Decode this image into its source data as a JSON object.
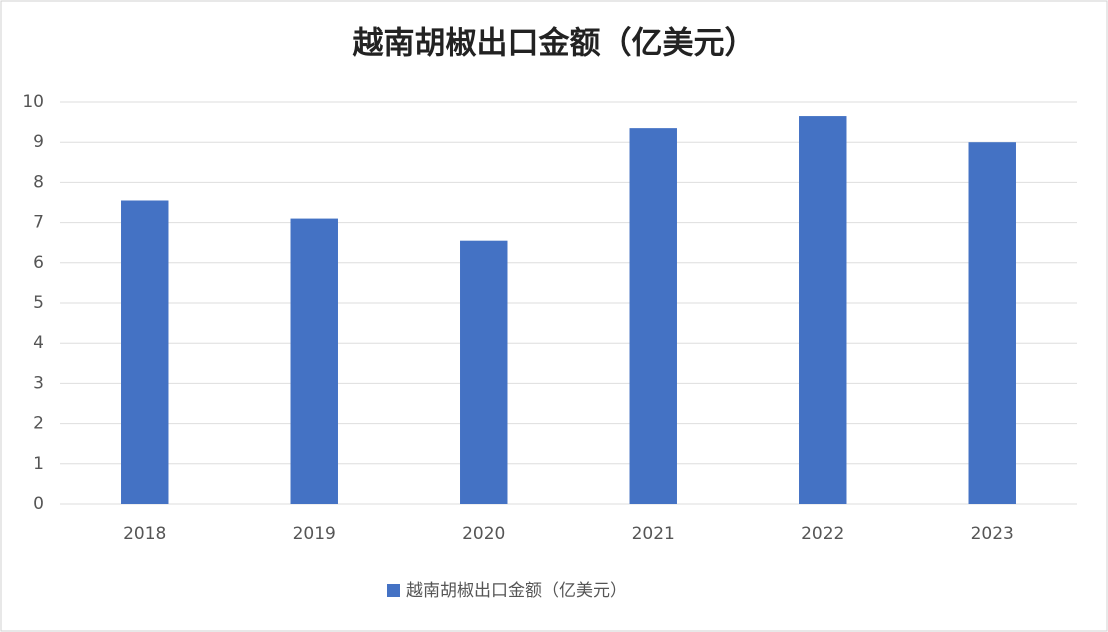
{
  "chart_data": {
    "type": "bar",
    "title": "越南胡椒出口金额（亿美元）",
    "categories": [
      "2018",
      "2019",
      "2020",
      "2021",
      "2022",
      "2023"
    ],
    "series": [
      {
        "name": "越南胡椒出口金额（亿美元）",
        "color": "#4472c4",
        "values": [
          7.55,
          7.1,
          6.55,
          9.35,
          9.65,
          9.0
        ]
      }
    ],
    "ylim": [
      0,
      10
    ],
    "yticks": [
      0,
      1,
      2,
      3,
      4,
      5,
      6,
      7,
      8,
      9,
      10
    ],
    "grid": true,
    "legend": "bottom"
  }
}
